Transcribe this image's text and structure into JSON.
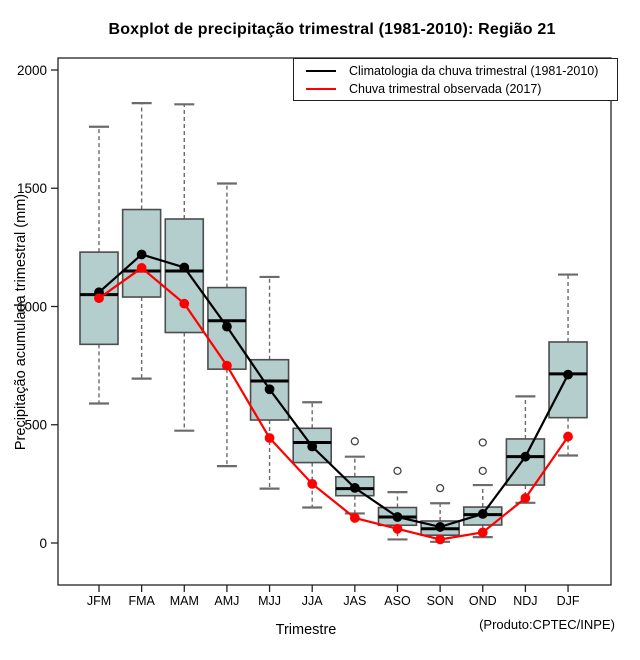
{
  "title": "Boxplot de precipitação trimestral (1981-2010): Região 21",
  "credit": "(Produto:CPTEC/INPE)",
  "legend": {
    "position": "top-right",
    "items": [
      {
        "label": "Climatologia da chuva trimestral (1981-2010)",
        "color": "#000000"
      },
      {
        "label": "Chuva trimestral observada (2017)",
        "color": "#ff0000"
      }
    ]
  },
  "chart_data": {
    "type": "boxplot+line",
    "title": "Boxplot de precipitação trimestral (1981-2010): Região 21",
    "xlabel": "Trimestre",
    "ylabel": "Precipitação acumulada trimestral (mm)",
    "ylim": [
      0,
      2000
    ],
    "y_ticks": [
      0,
      500,
      1000,
      1500,
      2000
    ],
    "grid": false,
    "categories": [
      "JFM",
      "FMA",
      "MAM",
      "AMJ",
      "MJJ",
      "JJA",
      "JAS",
      "ASO",
      "SON",
      "OND",
      "NDJ",
      "DJF"
    ],
    "boxes": [
      {
        "category": "JFM",
        "whisker_low": 590,
        "q1": 840,
        "median": 1050,
        "q3": 1230,
        "whisker_high": 1760,
        "outliers": []
      },
      {
        "category": "FMA",
        "whisker_low": 695,
        "q1": 1040,
        "median": 1150,
        "q3": 1410,
        "whisker_high": 1860,
        "outliers": []
      },
      {
        "category": "MAM",
        "whisker_low": 475,
        "q1": 890,
        "median": 1150,
        "q3": 1370,
        "whisker_high": 1855,
        "outliers": []
      },
      {
        "category": "AMJ",
        "whisker_low": 325,
        "q1": 735,
        "median": 940,
        "q3": 1080,
        "whisker_high": 1520,
        "outliers": []
      },
      {
        "category": "MJJ",
        "whisker_low": 230,
        "q1": 520,
        "median": 685,
        "q3": 775,
        "whisker_high": 1125,
        "outliers": []
      },
      {
        "category": "JJA",
        "whisker_low": 150,
        "q1": 340,
        "median": 425,
        "q3": 485,
        "whisker_high": 595,
        "outliers": []
      },
      {
        "category": "JAS",
        "whisker_low": 125,
        "q1": 200,
        "median": 230,
        "q3": 280,
        "whisker_high": 365,
        "outliers": [
          430
        ]
      },
      {
        "category": "ASO",
        "whisker_low": 15,
        "q1": 75,
        "median": 110,
        "q3": 150,
        "whisker_high": 215,
        "outliers": [
          305
        ]
      },
      {
        "category": "SON",
        "whisker_low": 5,
        "q1": 33,
        "median": 60,
        "q3": 93,
        "whisker_high": 168,
        "outliers": [
          232
        ]
      },
      {
        "category": "OND",
        "whisker_low": 25,
        "q1": 76,
        "median": 120,
        "q3": 152,
        "whisker_high": 245,
        "outliers": [
          305,
          425
        ]
      },
      {
        "category": "NDJ",
        "whisker_low": 170,
        "q1": 245,
        "median": 365,
        "q3": 440,
        "whisker_high": 620,
        "outliers": []
      },
      {
        "category": "DJF",
        "whisker_low": 370,
        "q1": 530,
        "median": 715,
        "q3": 850,
        "whisker_high": 1135,
        "outliers": []
      }
    ],
    "series": [
      {
        "name": "Climatologia da chuva trimestral (1981-2010)",
        "color": "#000000",
        "values": [
          1060,
          1220,
          1165,
          915,
          650,
          408,
          233,
          110,
          68,
          123,
          365,
          712
        ]
      },
      {
        "name": "Chuva trimestral observada (2017)",
        "color": "#ff0000",
        "values": [
          1035,
          1163,
          1012,
          750,
          444,
          250,
          106,
          60,
          15,
          45,
          190,
          450
        ]
      }
    ],
    "colors": {
      "box_fill": "#b4cecd",
      "box_border": "#4d4d4d",
      "median": "#000000",
      "whisker": "#6b6b6b",
      "outlier": "#444444",
      "frame": "#222222"
    }
  }
}
